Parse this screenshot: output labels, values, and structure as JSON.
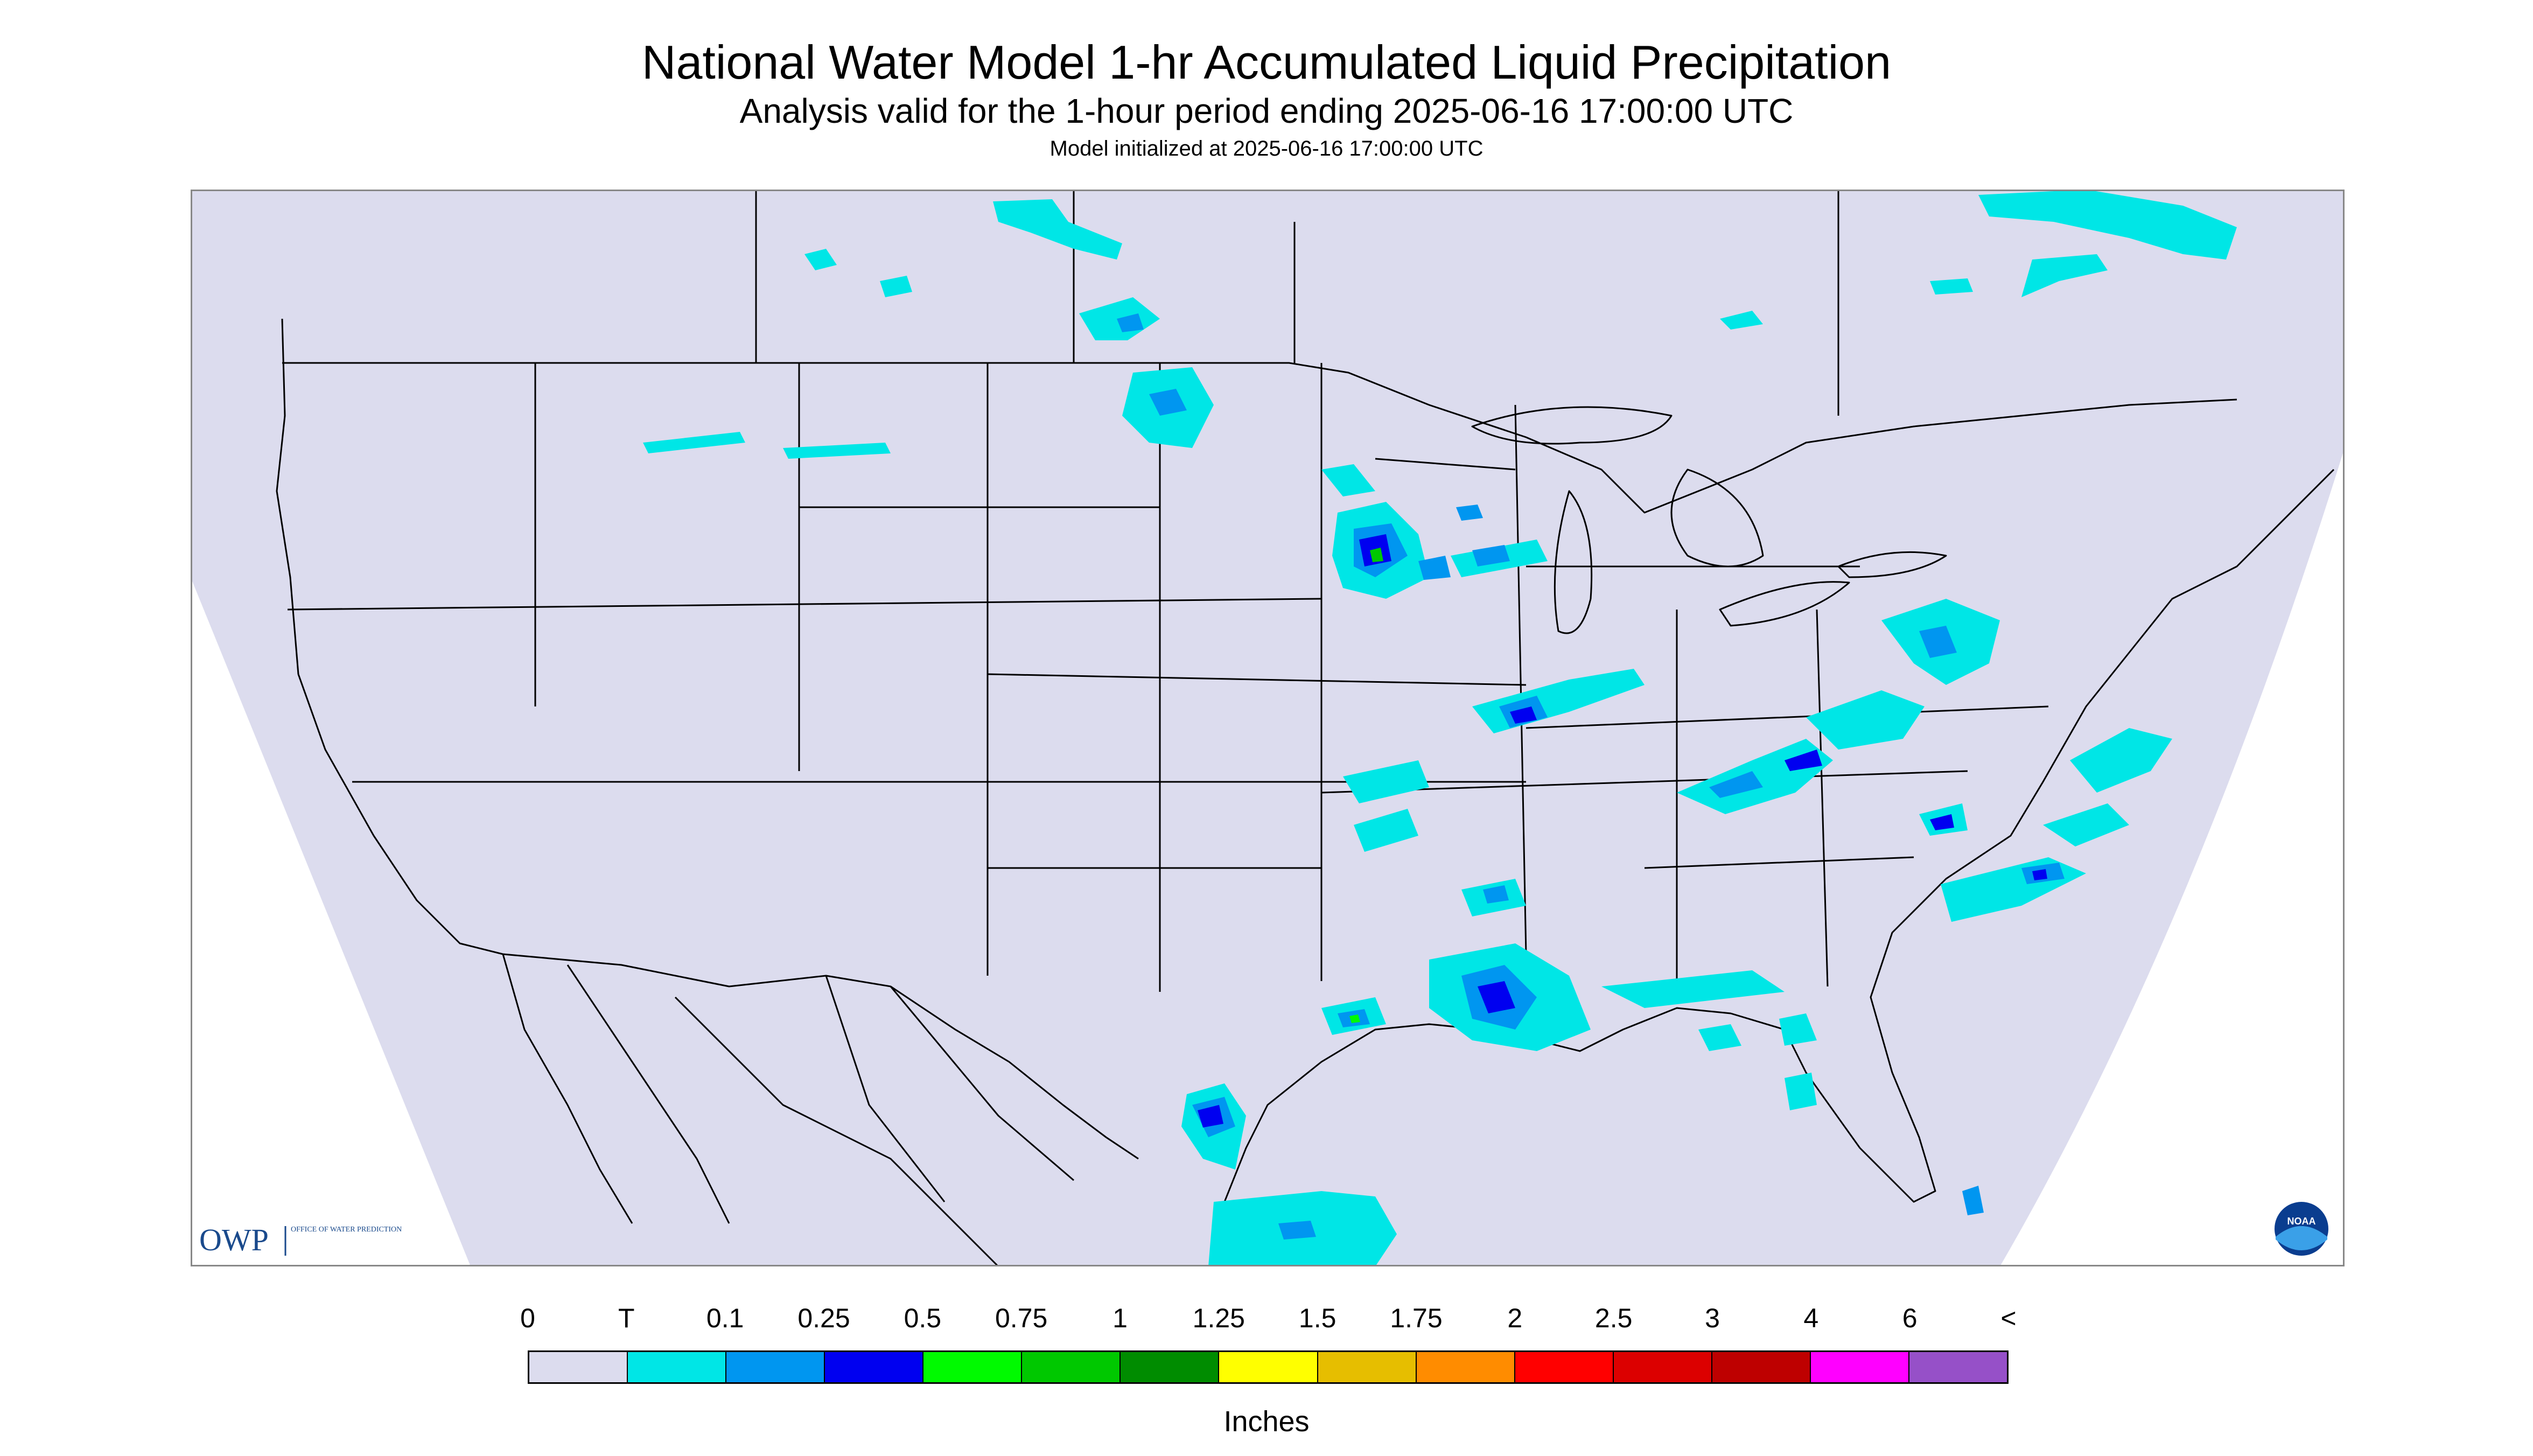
{
  "header": {
    "title": "National Water Model 1-hr Accumulated Liquid Precipitation",
    "subtitle": "Analysis valid for the 1-hour period ending 2025-06-16 17:00:00 UTC",
    "init_line": "Model initialized at 2025-06-16 17:00:00 UTC"
  },
  "logos": {
    "owp_acronym": "OWP",
    "owp_name": "OFFICE OF WATER PREDICTION",
    "noaa": "NOAA"
  },
  "colors": {
    "background_domain": "#dcdcee",
    "outside_domain": "#ffffff",
    "borders": "#000000"
  },
  "legend": {
    "labels": [
      "0",
      "T",
      "0.1",
      "0.25",
      "0.5",
      "0.75",
      "1",
      "1.25",
      "1.5",
      "1.75",
      "2",
      "2.5",
      "3",
      "4",
      "6",
      "<"
    ],
    "colors": [
      "#dcdcee",
      "#00e6e6",
      "#0096f0",
      "#0000f0",
      "#00fa00",
      "#00c800",
      "#008c00",
      "#ffff00",
      "#e6be00",
      "#ff8c00",
      "#ff0000",
      "#dc0000",
      "#be0000",
      "#ff00ff",
      "#9650c8"
    ],
    "units": "Inches"
  }
}
